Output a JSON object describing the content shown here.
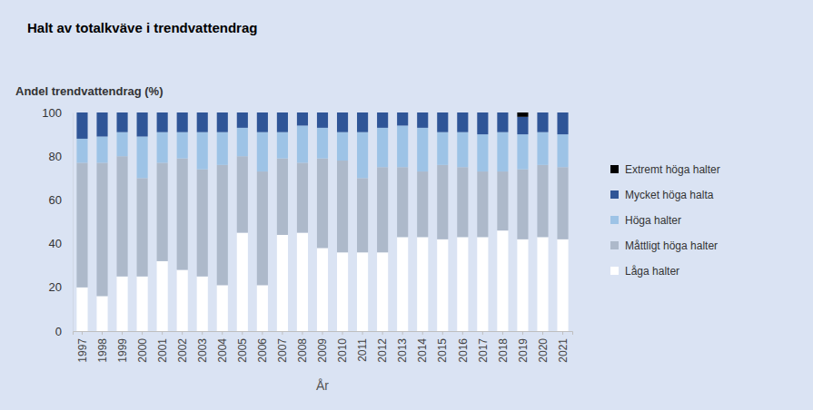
{
  "chart_data": {
    "type": "bar",
    "stacked": true,
    "title": "Halt av totalkväve i trendvattendrag",
    "y_label": "Andel trendvattendrag (%)",
    "x_label": "År",
    "categories": [
      "1997",
      "1998",
      "1999",
      "2000",
      "2001",
      "2002",
      "2003",
      "2004",
      "2005",
      "2006",
      "2007",
      "2008",
      "2009",
      "2010",
      "2011",
      "2012",
      "2013",
      "2014",
      "2015",
      "2016",
      "2017",
      "2018",
      "2019",
      "2020",
      "2021"
    ],
    "series": [
      {
        "name": "Låga halter",
        "color": "#ffffff",
        "values": [
          20,
          16,
          25,
          25,
          32,
          28,
          25,
          21,
          45,
          21,
          44,
          45,
          38,
          36,
          36,
          36,
          43,
          43,
          42,
          43,
          43,
          46,
          42,
          43,
          42
        ]
      },
      {
        "name": "Måttligt höga halter",
        "color": "#adb9ca",
        "values": [
          57,
          61,
          55,
          45,
          45,
          51,
          49,
          55,
          35,
          52,
          35,
          32,
          41,
          42,
          34,
          39,
          32,
          30,
          34,
          32,
          30,
          27,
          32,
          33,
          33
        ]
      },
      {
        "name": "Höga halter",
        "color": "#9dc3e6",
        "values": [
          11,
          12,
          11,
          19,
          14,
          12,
          17,
          15,
          13,
          18,
          12,
          17,
          14,
          13,
          21,
          18,
          19,
          20,
          15,
          16,
          17,
          18,
          16,
          15,
          15
        ]
      },
      {
        "name": "Mycket höga halta",
        "color": "#2f5597",
        "values": [
          12,
          11,
          9,
          11,
          9,
          9,
          9,
          9,
          7,
          9,
          9,
          6,
          7,
          9,
          9,
          7,
          6,
          7,
          9,
          9,
          10,
          9,
          8,
          9,
          10
        ]
      },
      {
        "name": "Extremt höga halter",
        "color": "#000000",
        "values": [
          0,
          0,
          0,
          0,
          0,
          0,
          0,
          0,
          0,
          0,
          0,
          0,
          0,
          0,
          0,
          0,
          0,
          0,
          0,
          0,
          0,
          0,
          2,
          0,
          0
        ]
      }
    ],
    "ylim": [
      0,
      100
    ],
    "yticks": [
      0,
      20,
      40,
      60,
      80,
      100
    ],
    "grid": false,
    "legend": "right"
  }
}
